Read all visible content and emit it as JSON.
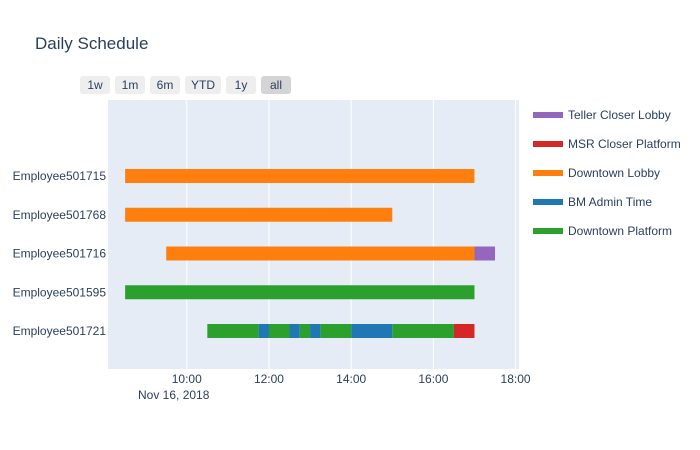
{
  "title": "Daily Schedule",
  "range_buttons": [
    {
      "label": "1w",
      "active": false
    },
    {
      "label": "1m",
      "active": false
    },
    {
      "label": "6m",
      "active": false
    },
    {
      "label": "YTD",
      "active": false
    },
    {
      "label": "1y",
      "active": false
    },
    {
      "label": "all",
      "active": true
    }
  ],
  "chart_data": {
    "type": "gantt",
    "date": "Nov 16, 2018",
    "x_range": [
      "08:05",
      "18:05"
    ],
    "x_ticks": [
      "10:00",
      "12:00",
      "14:00",
      "16:00",
      "18:00"
    ],
    "categories": [
      "Employee501721",
      "Employee501595",
      "Employee501716",
      "Employee501768",
      "Employee501715"
    ],
    "legend": [
      {
        "name": "Teller Closer Lobby",
        "color": "#9467bd"
      },
      {
        "name": "MSR Closer Platform",
        "color": "#d62728"
      },
      {
        "name": "Downtown Lobby",
        "color": "#ff7f0e"
      },
      {
        "name": "BM Admin Time",
        "color": "#1f77b4"
      },
      {
        "name": "Downtown Platform",
        "color": "#2ca02c"
      }
    ],
    "tasks": [
      {
        "employee": "Employee501715",
        "activity": "Downtown Lobby",
        "start": "08:30",
        "end": "17:00"
      },
      {
        "employee": "Employee501768",
        "activity": "Downtown Lobby",
        "start": "08:30",
        "end": "15:00"
      },
      {
        "employee": "Employee501716",
        "activity": "Downtown Lobby",
        "start": "09:30",
        "end": "17:00"
      },
      {
        "employee": "Employee501716",
        "activity": "Teller Closer Lobby",
        "start": "17:00",
        "end": "17:30"
      },
      {
        "employee": "Employee501595",
        "activity": "Downtown Platform",
        "start": "08:30",
        "end": "17:00"
      },
      {
        "employee": "Employee501721",
        "activity": "Downtown Platform",
        "start": "10:30",
        "end": "11:45"
      },
      {
        "employee": "Employee501721",
        "activity": "BM Admin Time",
        "start": "11:45",
        "end": "12:00"
      },
      {
        "employee": "Employee501721",
        "activity": "Downtown Platform",
        "start": "12:00",
        "end": "12:30"
      },
      {
        "employee": "Employee501721",
        "activity": "BM Admin Time",
        "start": "12:30",
        "end": "12:45"
      },
      {
        "employee": "Employee501721",
        "activity": "Downtown Platform",
        "start": "12:45",
        "end": "13:00"
      },
      {
        "employee": "Employee501721",
        "activity": "BM Admin Time",
        "start": "13:00",
        "end": "13:15"
      },
      {
        "employee": "Employee501721",
        "activity": "Downtown Platform",
        "start": "13:15",
        "end": "14:00"
      },
      {
        "employee": "Employee501721",
        "activity": "BM Admin Time",
        "start": "14:00",
        "end": "15:00"
      },
      {
        "employee": "Employee501721",
        "activity": "Downtown Platform",
        "start": "15:00",
        "end": "16:30"
      },
      {
        "employee": "Employee501721",
        "activity": "MSR Closer Platform",
        "start": "16:30",
        "end": "17:00"
      }
    ]
  }
}
